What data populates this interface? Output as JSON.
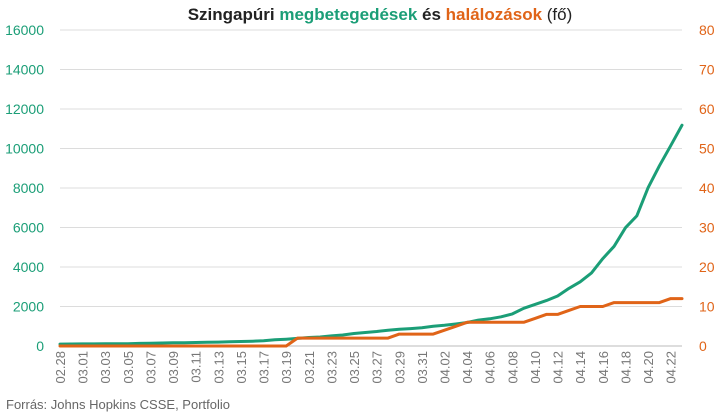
{
  "title": {
    "part1": "Szingapúri ",
    "cases_word": "megbetegedések",
    "part2": " és ",
    "deaths_word": "halálozások",
    "part3": " (fő)"
  },
  "source": "Forrás: Johns Hopkins CSSE, Portfolio",
  "colors": {
    "cases": "#1b9e77",
    "deaths": "#e06418",
    "grid": "#dcdcdc",
    "tick_left": "#1b9e77",
    "tick_right": "#e06418",
    "tick_x": "#777777"
  },
  "chart_data": {
    "type": "line",
    "title": "Szingapúri megbetegedések és halálozások (fő)",
    "x_tick_labels": [
      "02.28",
      "03.01",
      "03.03",
      "03.05",
      "03.07",
      "03.09",
      "03.11",
      "03.13",
      "03.15",
      "03.17",
      "03.19",
      "03.21",
      "03.23",
      "03.25",
      "03.27",
      "03.29",
      "03.31",
      "04.02",
      "04.04",
      "04.06",
      "04.08",
      "04.10",
      "04.12",
      "04.14",
      "04.16",
      "04.18",
      "04.20",
      "04.22"
    ],
    "x": [
      "02.28",
      "02.29",
      "03.01",
      "03.02",
      "03.03",
      "03.04",
      "03.05",
      "03.06",
      "03.07",
      "03.08",
      "03.09",
      "03.10",
      "03.11",
      "03.12",
      "03.13",
      "03.14",
      "03.15",
      "03.16",
      "03.17",
      "03.18",
      "03.19",
      "03.20",
      "03.21",
      "03.22",
      "03.23",
      "03.24",
      "03.25",
      "03.26",
      "03.27",
      "03.28",
      "03.29",
      "03.30",
      "03.31",
      "04.01",
      "04.02",
      "04.03",
      "04.04",
      "04.05",
      "04.06",
      "04.07",
      "04.08",
      "04.09",
      "04.10",
      "04.11",
      "04.12",
      "04.13",
      "04.14",
      "04.15",
      "04.16",
      "04.17",
      "04.18",
      "04.19",
      "04.20",
      "04.21",
      "04.22",
      "04.23"
    ],
    "y_left_lim": [
      0,
      16000
    ],
    "y_left_ticks": [
      0,
      2000,
      4000,
      6000,
      8000,
      10000,
      12000,
      14000,
      16000
    ],
    "y_right_lim": [
      0,
      80
    ],
    "y_right_ticks": [
      0,
      10,
      20,
      30,
      40,
      50,
      60,
      70,
      80
    ],
    "grid": true,
    "legend": "none",
    "series": [
      {
        "name": "megbetegedések",
        "axis": "left",
        "values": [
          98,
          102,
          106,
          108,
          110,
          112,
          117,
          130,
          138,
          150,
          160,
          166,
          178,
          187,
          200,
          212,
          226,
          243,
          266,
          313,
          345,
          385,
          432,
          455,
          509,
          558,
          631,
          683,
          732,
          802,
          844,
          879,
          926,
          1000,
          1049,
          1114,
          1189,
          1309,
          1375,
          1481,
          1623,
          1910,
          2108,
          2299,
          2532,
          2918,
          3252,
          3699,
          4427,
          5050,
          5992,
          6588,
          8014,
          9125,
          10141,
          11178
        ]
      },
      {
        "name": "halálozások",
        "axis": "right",
        "values": [
          0,
          0,
          0,
          0,
          0,
          0,
          0,
          0,
          0,
          0,
          0,
          0,
          0,
          0,
          0,
          0,
          0,
          0,
          0,
          0,
          0,
          2,
          2,
          2,
          2,
          2,
          2,
          2,
          2,
          2,
          3,
          3,
          3,
          3,
          4,
          5,
          6,
          6,
          6,
          6,
          6,
          6,
          7,
          8,
          8,
          9,
          10,
          10,
          10,
          11,
          11,
          11,
          11,
          11,
          12,
          12
        ]
      }
    ]
  }
}
